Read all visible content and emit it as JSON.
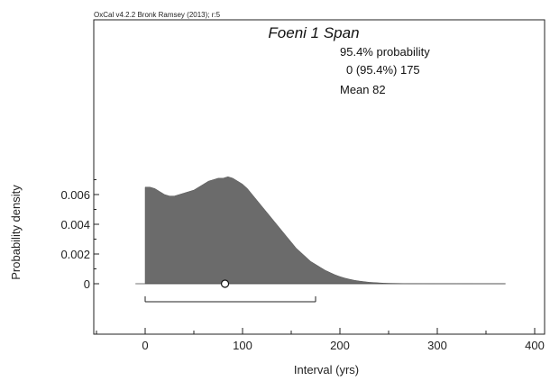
{
  "software_label": "OxCal v4.2.2 Bronk Ramsey (2013); r:5",
  "chart_data": {
    "type": "area",
    "title": "Foeni 1 Span",
    "xlabel": "Interval (yrs)",
    "ylabel": "Probability density",
    "xlim": [
      -50,
      400
    ],
    "ylim": [
      -0.0025,
      0.0085
    ],
    "x_ticks": [
      0,
      100,
      200,
      300,
      400
    ],
    "x_tick_labels": [
      "0",
      "100",
      "200",
      "300",
      "400"
    ],
    "y_ticks": [
      0,
      0.002,
      0.004,
      0.006
    ],
    "y_tick_labels": [
      "0",
      "0.002",
      "0.004",
      "0.006"
    ],
    "grid": false,
    "x": [
      0,
      5,
      10,
      15,
      20,
      25,
      30,
      35,
      40,
      45,
      50,
      55,
      60,
      65,
      70,
      75,
      80,
      85,
      90,
      95,
      100,
      105,
      110,
      115,
      120,
      125,
      130,
      135,
      140,
      145,
      150,
      155,
      160,
      165,
      170,
      175,
      180,
      185,
      190,
      195,
      200,
      205,
      210,
      215,
      220,
      225,
      230,
      235,
      240,
      245,
      250,
      260,
      270,
      280,
      290,
      300,
      320,
      340,
      360,
      370
    ],
    "y": [
      0.0065,
      0.0065,
      0.0064,
      0.0062,
      0.006,
      0.0059,
      0.0059,
      0.006,
      0.0061,
      0.0062,
      0.0063,
      0.0065,
      0.0067,
      0.0069,
      0.007,
      0.0071,
      0.0071,
      0.0072,
      0.0071,
      0.0069,
      0.0067,
      0.0064,
      0.006,
      0.0056,
      0.0052,
      0.0048,
      0.0044,
      0.004,
      0.0036,
      0.0032,
      0.0028,
      0.0024,
      0.0021,
      0.0018,
      0.0015,
      0.0013,
      0.0011,
      0.0009,
      0.00075,
      0.0006,
      0.00048,
      0.00038,
      0.0003,
      0.00023,
      0.00018,
      0.00014,
      0.0001,
      8e-05,
      6e-05,
      4e-05,
      3e-05,
      2e-05,
      1e-05,
      1e-05,
      5e-06,
      3e-06,
      1e-06,
      0,
      0,
      0
    ],
    "range_95": {
      "from": 0,
      "to": 175
    },
    "mean": 82,
    "annotations": [
      "95.4% probability",
      "0 (95.4%) 175",
      "Mean 82"
    ],
    "fill_color": "#6b6b6b"
  }
}
